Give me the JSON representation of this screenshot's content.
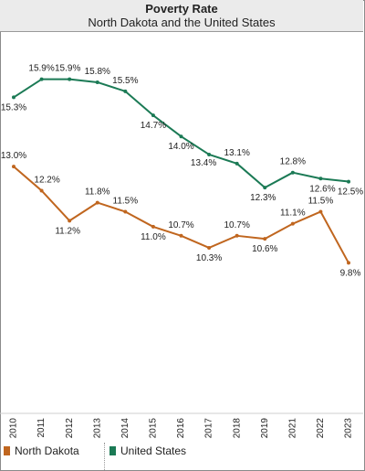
{
  "chart_data": {
    "type": "line",
    "title": "Poverty Rate",
    "subtitle": "North Dakota and the United States",
    "categories": [
      "2010",
      "2011",
      "2012",
      "2013",
      "2014",
      "2015",
      "2016",
      "2017",
      "2018",
      "2019",
      "2021",
      "2022",
      "2023"
    ],
    "series": [
      {
        "name": "United States",
        "color": "#1b7a55",
        "values": [
          15.3,
          15.9,
          15.9,
          15.8,
          15.5,
          14.7,
          14.0,
          13.4,
          13.1,
          12.3,
          12.8,
          12.6,
          12.5
        ],
        "labels": [
          "15.3%",
          "15.9%",
          "15.9%",
          "15.8%",
          "15.5%",
          "14.7%",
          "14.0%",
          "13.4%",
          "13.1%",
          "12.3%",
          "12.8%",
          "12.6%",
          "12.5%"
        ]
      },
      {
        "name": "North Dakota",
        "color": "#c0661f",
        "values": [
          13.0,
          12.2,
          11.2,
          11.8,
          11.5,
          11.0,
          10.7,
          10.3,
          10.7,
          10.6,
          11.1,
          11.5,
          9.8
        ],
        "labels": [
          "13.0%",
          "12.2%",
          "11.2%",
          "11.8%",
          "11.5%",
          "11.0%",
          "10.7%",
          "10.3%",
          "10.7%",
          "10.6%",
          "11.1%",
          "11.5%",
          "9.8%"
        ]
      }
    ],
    "ylim": [
      4.8,
      17.5
    ],
    "grid": false,
    "legend_position": "bottom-left"
  }
}
